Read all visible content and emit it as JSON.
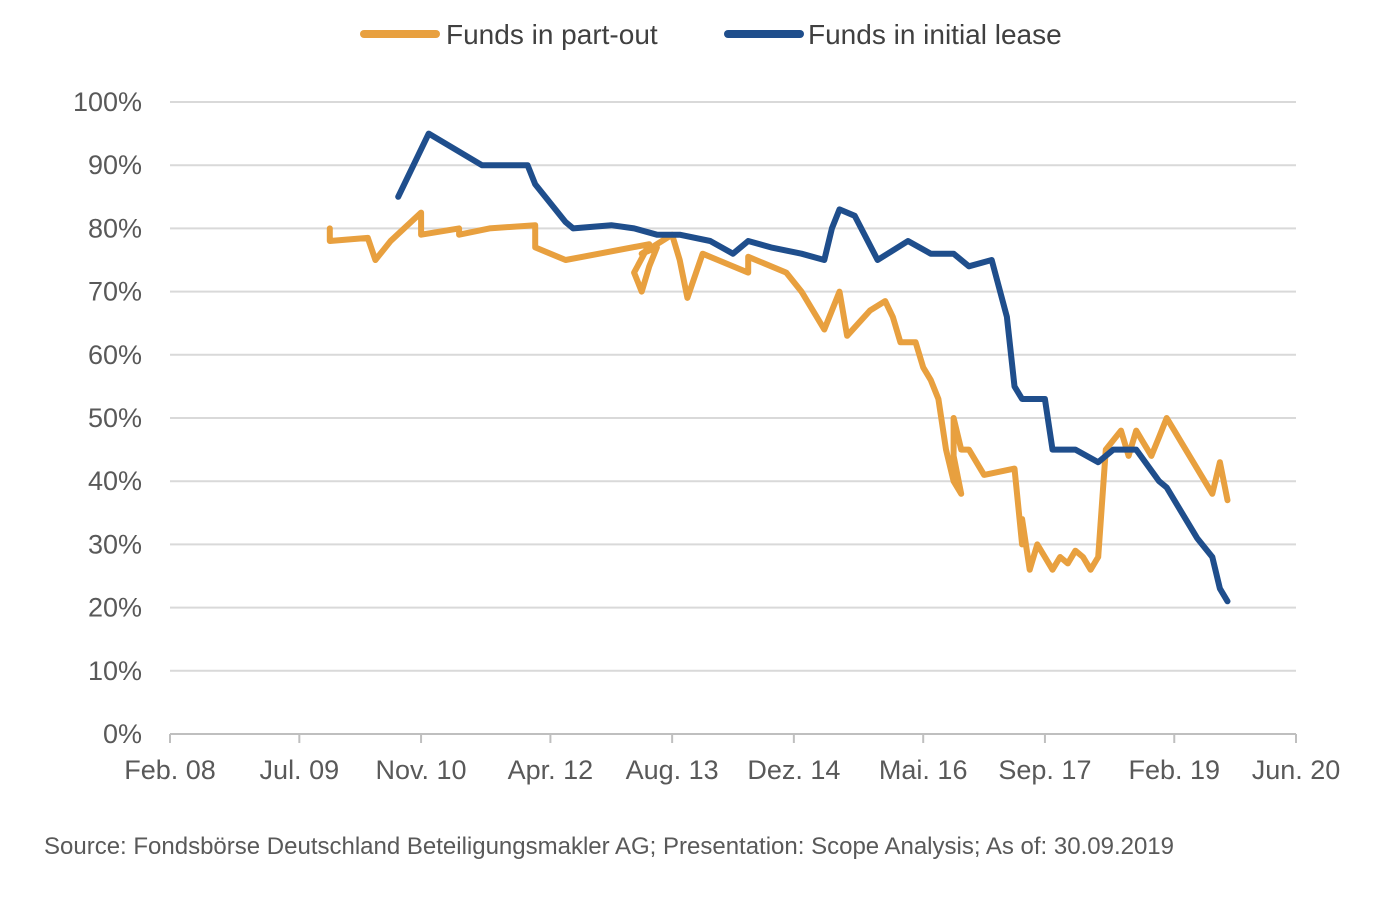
{
  "chart_data": {
    "type": "line",
    "title": "",
    "xlabel": "",
    "ylabel": "",
    "y_unit": "%",
    "ylim": [
      0,
      100
    ],
    "y_ticks": [
      0,
      10,
      20,
      30,
      40,
      50,
      60,
      70,
      80,
      90,
      100
    ],
    "y_tick_labels": [
      "0%",
      "10%",
      "20%",
      "30%",
      "40%",
      "50%",
      "60%",
      "70%",
      "80%",
      "90%",
      "100%"
    ],
    "xlim": [
      "2008-02",
      "2020-06"
    ],
    "x_ticks": [
      "2008-02",
      "2009-07",
      "2010-11",
      "2012-04",
      "2013-08",
      "2014-12",
      "2016-05",
      "2017-09",
      "2019-02",
      "2020-06"
    ],
    "x_tick_labels": [
      "Feb. 08",
      "Jul. 09",
      "Nov. 10",
      "Apr. 12",
      "Aug. 13",
      "Dez. 14",
      "Mai. 16",
      "Sep. 17",
      "Feb. 19",
      "Jun. 20"
    ],
    "grid": true,
    "legend_position": "top",
    "series": [
      {
        "name": "Funds in part-out",
        "color": "#E8A03F",
        "points": [
          [
            "2009-11",
            80
          ],
          [
            "2009-11",
            78
          ],
          [
            "2010-04",
            78.5
          ],
          [
            "2010-05",
            75
          ],
          [
            "2010-07",
            78
          ],
          [
            "2010-11",
            82.5
          ],
          [
            "2010-11",
            79
          ],
          [
            "2011-04",
            80
          ],
          [
            "2011-04",
            79
          ],
          [
            "2011-08",
            80
          ],
          [
            "2012-02",
            80.5
          ],
          [
            "2012-02",
            77
          ],
          [
            "2012-06",
            75
          ],
          [
            "2013-05",
            77.5
          ],
          [
            "2013-03",
            73
          ],
          [
            "2013-04",
            70
          ],
          [
            "2013-05",
            74
          ],
          [
            "2013-06",
            77
          ],
          [
            "2013-04",
            76
          ],
          [
            "2013-08",
            79
          ],
          [
            "2013-09",
            75
          ],
          [
            "2013-10",
            69
          ],
          [
            "2013-12",
            76
          ],
          [
            "2014-02",
            75
          ],
          [
            "2014-06",
            73
          ],
          [
            "2014-06",
            75.5
          ],
          [
            "2014-11",
            73
          ],
          [
            "2015-01",
            70
          ],
          [
            "2015-04",
            64
          ],
          [
            "2015-06",
            70
          ],
          [
            "2015-07",
            63
          ],
          [
            "2015-10",
            67
          ],
          [
            "2015-12",
            68.5
          ],
          [
            "2016-01",
            66
          ],
          [
            "2016-02",
            62
          ],
          [
            "2016-04",
            62
          ],
          [
            "2016-05",
            58
          ],
          [
            "2016-06",
            56
          ],
          [
            "2016-07",
            53
          ],
          [
            "2016-08",
            45
          ],
          [
            "2016-09",
            40
          ],
          [
            "2016-10",
            38
          ],
          [
            "2016-09",
            44
          ],
          [
            "2016-09",
            50
          ],
          [
            "2016-10",
            45
          ],
          [
            "2016-11",
            45
          ],
          [
            "2017-01",
            41
          ],
          [
            "2017-05",
            42
          ],
          [
            "2017-06",
            30
          ],
          [
            "2017-06",
            34
          ],
          [
            "2017-07",
            26
          ],
          [
            "2017-08",
            30
          ],
          [
            "2017-09",
            28
          ],
          [
            "2017-10",
            26
          ],
          [
            "2017-11",
            28
          ],
          [
            "2017-12",
            27
          ],
          [
            "2018-01",
            29
          ],
          [
            "2018-02",
            28
          ],
          [
            "2018-03",
            26
          ],
          [
            "2018-04",
            28
          ],
          [
            "2018-05",
            45
          ],
          [
            "2018-07",
            48
          ],
          [
            "2018-08",
            44
          ],
          [
            "2018-09",
            48
          ],
          [
            "2018-10",
            46
          ],
          [
            "2018-11",
            44
          ],
          [
            "2018-12",
            47
          ],
          [
            "2019-01",
            50
          ],
          [
            "2019-02",
            48
          ],
          [
            "2019-03",
            46
          ],
          [
            "2019-05",
            42
          ],
          [
            "2019-07",
            38
          ],
          [
            "2019-08",
            43
          ],
          [
            "2019-09",
            37
          ]
        ]
      },
      {
        "name": "Funds in initial lease",
        "color": "#1F4E8C",
        "points": [
          [
            "2010-08",
            85
          ],
          [
            "2010-12",
            95
          ],
          [
            "2011-07",
            90
          ],
          [
            "2012-01",
            90
          ],
          [
            "2012-02",
            87
          ],
          [
            "2012-06",
            81
          ],
          [
            "2012-07",
            80
          ],
          [
            "2012-12",
            80.5
          ],
          [
            "2013-03",
            80
          ],
          [
            "2013-06",
            79
          ],
          [
            "2013-09",
            79
          ],
          [
            "2014-01",
            78
          ],
          [
            "2014-04",
            76
          ],
          [
            "2014-06",
            78
          ],
          [
            "2014-09",
            77
          ],
          [
            "2015-01",
            76
          ],
          [
            "2015-04",
            75
          ],
          [
            "2015-05",
            80
          ],
          [
            "2015-06",
            83
          ],
          [
            "2015-08",
            82
          ],
          [
            "2015-11",
            75
          ],
          [
            "2016-03",
            78
          ],
          [
            "2016-06",
            76
          ],
          [
            "2016-09",
            76
          ],
          [
            "2016-11",
            74
          ],
          [
            "2017-02",
            75
          ],
          [
            "2017-04",
            66
          ],
          [
            "2017-05",
            55
          ],
          [
            "2017-06",
            53
          ],
          [
            "2017-09",
            53
          ],
          [
            "2017-10",
            45
          ],
          [
            "2018-01",
            45
          ],
          [
            "2018-04",
            43
          ],
          [
            "2018-06",
            45
          ],
          [
            "2018-09",
            45
          ],
          [
            "2018-12",
            40
          ],
          [
            "2019-01",
            39
          ],
          [
            "2019-03",
            35
          ],
          [
            "2019-05",
            31
          ],
          [
            "2019-07",
            28
          ],
          [
            "2019-08",
            23
          ],
          [
            "2019-09",
            21
          ]
        ]
      }
    ]
  },
  "source_text": "Source: Fondsbörse Deutschland Beteiligungsmakler AG; Presentation: Scope Analysis; As of: 30.09.2019"
}
